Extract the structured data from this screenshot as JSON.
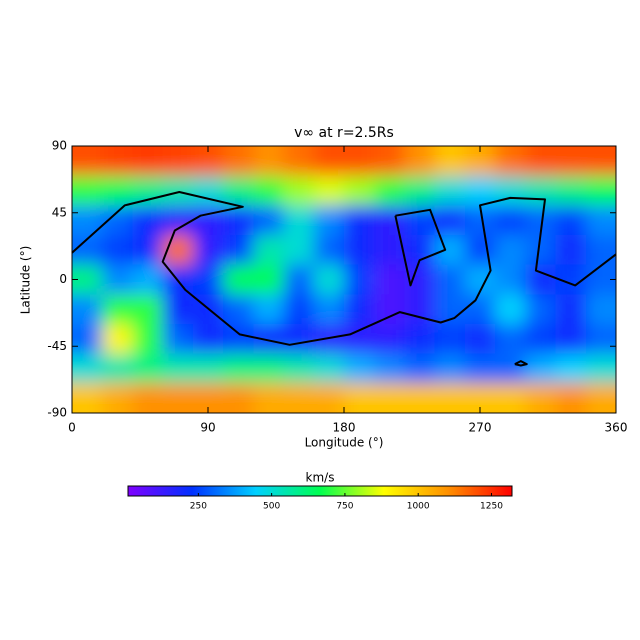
{
  "chart_data": {
    "type": "heatmap",
    "title": "v∞ at r=2.5Rs",
    "x_label": "Longitude (°)",
    "y_label": "Latitude (°)",
    "colorbar_label": "km/s",
    "xlim": [
      0,
      360
    ],
    "ylim": [
      -90,
      90
    ],
    "xticks": [
      0,
      90,
      180,
      270,
      360
    ],
    "yticks": [
      -90,
      -45,
      0,
      45,
      90
    ],
    "zlim": [
      10,
      1320
    ],
    "zticks": [
      250,
      500,
      750,
      1000,
      1250
    ],
    "colors": [
      "#8000ff",
      "#0030ff",
      "#00d0ff",
      "#00ff50",
      "#ffff00",
      "#ff9000",
      "#ff0000"
    ],
    "x": [
      10,
      30,
      50,
      70,
      90,
      110,
      130,
      150,
      170,
      190,
      210,
      230,
      250,
      270,
      290,
      310,
      330,
      350
    ],
    "y": [
      80,
      60,
      40,
      20,
      0,
      -20,
      -40,
      -60,
      -80
    ],
    "z": [
      [
        1200,
        1220,
        1230,
        1220,
        1200,
        1150,
        1100,
        1150,
        1200,
        1200,
        1180,
        1100,
        1000,
        1050,
        1150,
        1200,
        1200,
        1200
      ],
      [
        700,
        650,
        600,
        550,
        500,
        600,
        700,
        800,
        850,
        800,
        700,
        600,
        500,
        450,
        500,
        550,
        600,
        650
      ],
      [
        350,
        300,
        200,
        150,
        150,
        200,
        300,
        500,
        350,
        200,
        150,
        250,
        200,
        300,
        250,
        300,
        250,
        350
      ],
      [
        300,
        250,
        200,
        1150,
        150,
        250,
        550,
        500,
        300,
        200,
        150,
        200,
        400,
        250,
        350,
        300,
        200,
        300
      ],
      [
        600,
        350,
        400,
        200,
        250,
        650,
        650,
        300,
        500,
        250,
        100,
        150,
        300,
        400,
        350,
        200,
        250,
        300
      ],
      [
        350,
        700,
        700,
        200,
        200,
        300,
        400,
        250,
        350,
        200,
        100,
        150,
        300,
        300,
        450,
        300,
        200,
        350
      ],
      [
        300,
        900,
        700,
        300,
        200,
        250,
        200,
        200,
        150,
        150,
        150,
        200,
        250,
        200,
        300,
        250,
        200,
        300
      ],
      [
        500,
        550,
        600,
        550,
        550,
        600,
        600,
        550,
        500,
        400,
        350,
        300,
        350,
        300,
        300,
        400,
        450,
        500
      ],
      [
        1000,
        1050,
        1100,
        1100,
        1100,
        1100,
        1050,
        1050,
        1050,
        1000,
        1000,
        1000,
        1000,
        1000,
        1000,
        1050,
        1100,
        1050
      ]
    ],
    "contours": [
      {
        "x": [
          0,
          35,
          71,
          113,
          85,
          68,
          60,
          75,
          111,
          144,
          184,
          217,
          244,
          253,
          267,
          277,
          270,
          290,
          313,
          307,
          333,
          360
        ],
        "y": [
          18,
          50,
          59,
          49,
          43,
          33,
          12,
          -7,
          -37,
          -44,
          -37,
          -22,
          -29,
          -26,
          -14,
          6,
          50,
          55,
          54,
          6,
          -4,
          17
        ]
      },
      {
        "x": [
          214,
          224,
          230,
          247,
          237,
          214
        ],
        "y": [
          43,
          -4,
          13,
          20,
          47,
          43
        ]
      },
      {
        "x": [
          293,
          297,
          301,
          297,
          293
        ],
        "y": [
          -57,
          -55,
          -57,
          -58,
          -57
        ]
      }
    ]
  }
}
